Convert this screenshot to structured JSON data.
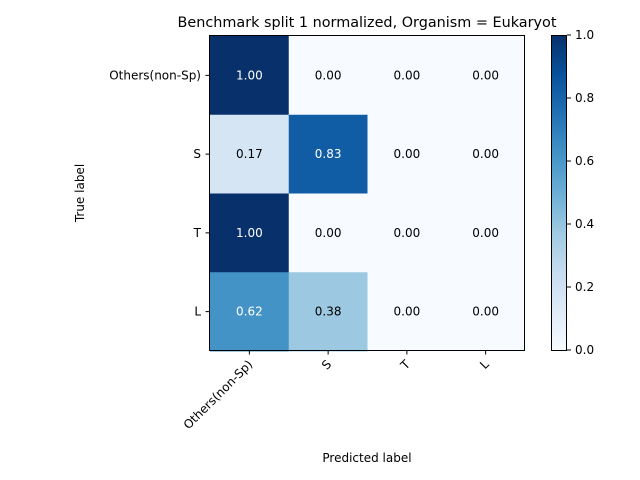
{
  "chart_data": {
    "type": "heatmap",
    "title": "Benchmark split 1 normalized, Organism = Eukaryot",
    "xlabel": "Predicted label",
    "ylabel": "True label",
    "x_categories": [
      "Others(non-Sp)",
      "S",
      "T",
      "L"
    ],
    "y_categories": [
      "Others(non-Sp)",
      "S",
      "T",
      "L"
    ],
    "values": [
      [
        1.0,
        0.0,
        0.0,
        0.0
      ],
      [
        0.17,
        0.83,
        0.0,
        0.0
      ],
      [
        1.0,
        0.0,
        0.0,
        0.0
      ],
      [
        0.62,
        0.38,
        0.0,
        0.0
      ]
    ],
    "cell_labels": [
      [
        "1.00",
        "0.00",
        "0.00",
        "0.00"
      ],
      [
        "0.17",
        "0.83",
        "0.00",
        "0.00"
      ],
      [
        "1.00",
        "0.00",
        "0.00",
        "0.00"
      ],
      [
        "0.62",
        "0.38",
        "0.00",
        "0.00"
      ]
    ],
    "colormap": "Blues",
    "vmin": 0.0,
    "vmax": 1.0,
    "colorbar_ticks": [
      "0.0",
      "0.2",
      "0.4",
      "0.6",
      "0.8",
      "1.0"
    ],
    "colorbar_tick_values": [
      0.0,
      0.2,
      0.4,
      0.6,
      0.8,
      1.0
    ],
    "grid": false
  }
}
